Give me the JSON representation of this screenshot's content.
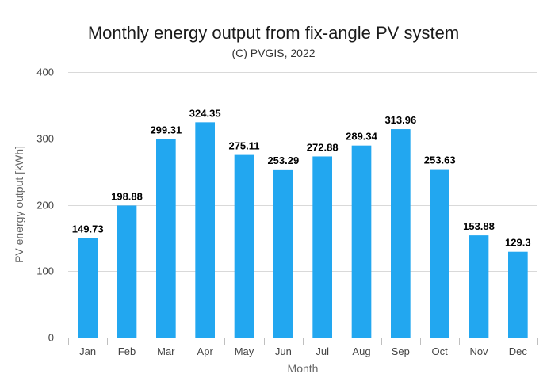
{
  "chart_data": {
    "type": "bar",
    "title": "Monthly energy output from fix-angle PV system",
    "subtitle": "(C) PVGIS, 2022",
    "xlabel": "Month",
    "ylabel": "PV energy output [kWh]",
    "categories": [
      "Jan",
      "Feb",
      "Mar",
      "Apr",
      "May",
      "Jun",
      "Jul",
      "Aug",
      "Sep",
      "Oct",
      "Nov",
      "Dec"
    ],
    "values": [
      149.73,
      198.88,
      299.31,
      324.35,
      275.11,
      253.29,
      272.88,
      289.34,
      313.96,
      253.63,
      153.88,
      129.3
    ],
    "data_labels": [
      "149.73",
      "198.88",
      "299.31",
      "324.35",
      "275.11",
      "253.29",
      "272.88",
      "289.34",
      "313.96",
      "253.63",
      "153.88",
      "129.3"
    ],
    "ylim": [
      0,
      400
    ],
    "yticks": [
      0,
      100,
      200,
      300,
      400
    ],
    "ytick_labels": [
      "0",
      "100",
      "200",
      "300",
      "400"
    ],
    "grid": true,
    "legend": "none",
    "bar_color": "#22a7f0"
  }
}
